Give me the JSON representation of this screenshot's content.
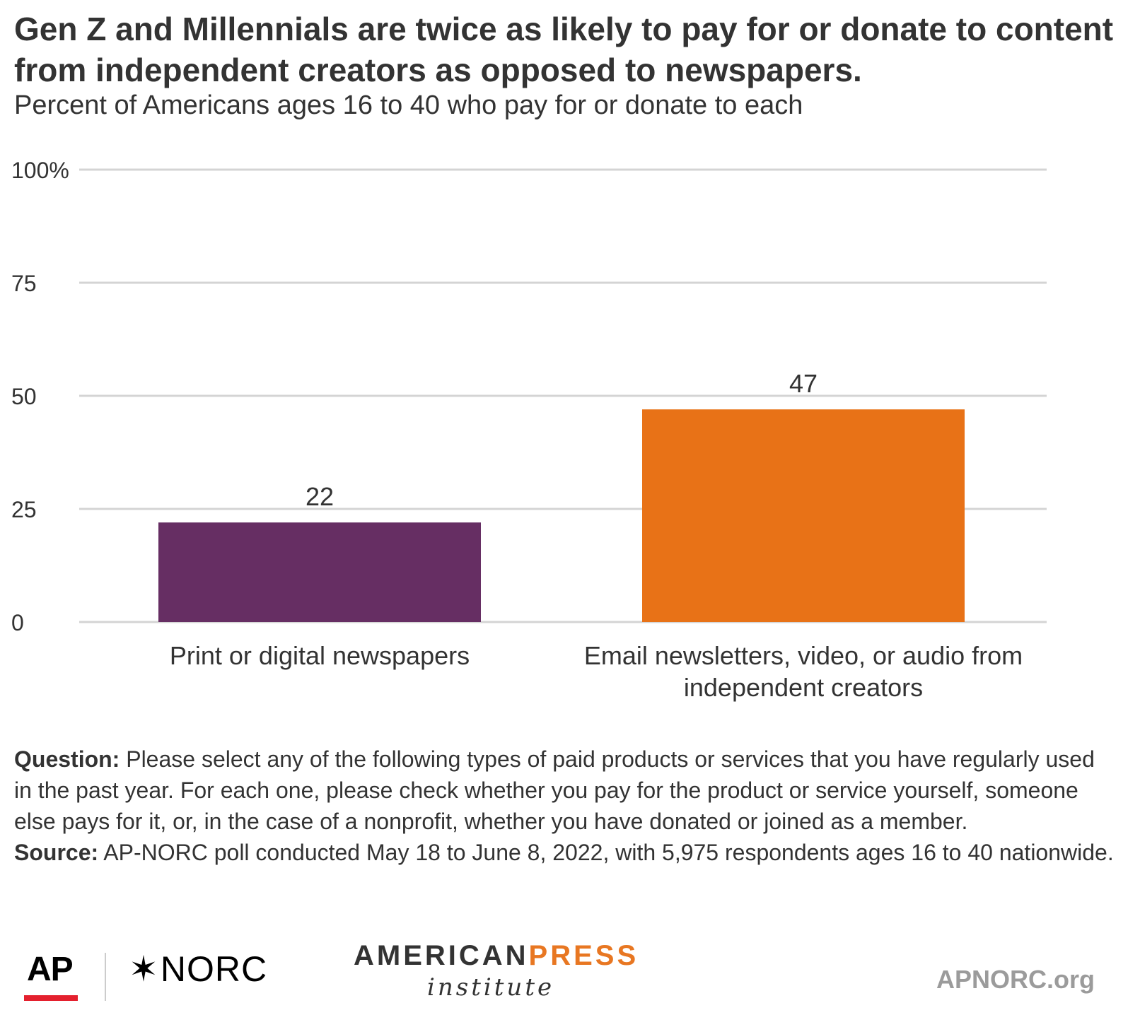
{
  "title": "Gen Z and Millennials are twice as likely to pay for or donate to content from independent creators as opposed to newspapers.",
  "subtitle": "Percent of Americans ages 16 to 40 who pay for or donate to each",
  "chart_data": {
    "type": "bar",
    "categories": [
      "Print or digital newspapers",
      "Email newsletters, video, or audio from independent creators"
    ],
    "category_lines": [
      [
        "Print or digital newspapers"
      ],
      [
        "Email newsletters, video, or audio from",
        "independent creators"
      ]
    ],
    "values": [
      22,
      47
    ],
    "colors": [
      "#662e63",
      "#e87217"
    ],
    "ylim": [
      0,
      100
    ],
    "yticks": [
      0,
      25,
      50,
      75,
      100
    ],
    "ytick_labels": [
      "0",
      "25",
      "50",
      "75",
      "100%"
    ],
    "grid": true,
    "legend": "none"
  },
  "notes": {
    "question_label": "Question:",
    "question_text": " Please select any of the following types of paid products or services that you have regularly used in the past year. For each one, please check whether you pay for the product or service yourself, someone else pays for it, or, in the case of a nonprofit, whether you have donated or joined as a member.",
    "source_label": "Source:",
    "source_text": " AP-NORC poll conducted May 18 to June 8, 2022, with 5,975 respondents ages 16 to 40 nationwide."
  },
  "footer": {
    "ap_logo": "AP",
    "norc_star": "✶",
    "norc_text": "NORC",
    "api_american": "AMERICAN",
    "api_press": "PRESS",
    "api_institute": "institute",
    "url": "APNORC.org"
  }
}
